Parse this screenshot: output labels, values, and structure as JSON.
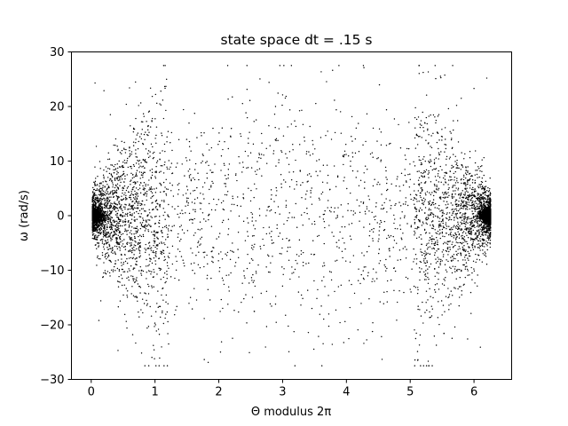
{
  "chart_data": {
    "type": "scatter",
    "title": "state space dt = .15 s",
    "xlabel": "Θ modulus 2π",
    "ylabel": "ω (rad/s)",
    "xlim": [
      -0.31,
      6.59
    ],
    "ylim": [
      -30,
      30
    ],
    "xticks": [
      0,
      1,
      2,
      3,
      4,
      5,
      6
    ],
    "yticks": [
      30,
      20,
      10,
      0,
      -10,
      -20,
      -30
    ],
    "ytick_labels": [
      "30",
      "20",
      "10",
      "0",
      "−10",
      "−20",
      "−30"
    ],
    "grid": false,
    "legend": "none",
    "marker_color": "#000000",
    "series": [
      {
        "distribution": "dense clusters at ω≈0 near Θ≈0 and Θ≈2π, sparse cloud elsewhere",
        "points": [
          [
            0.05,
            0.3
          ],
          [
            0.07,
            -0.5
          ],
          [
            0.1,
            0.8
          ],
          [
            0.12,
            -1.2
          ],
          [
            0.03,
            1.5
          ],
          [
            0.15,
            -0.2
          ],
          [
            0.2,
            2.1
          ],
          [
            0.08,
            -2.4
          ],
          [
            0.18,
            3.0
          ],
          [
            0.25,
            -3.1
          ],
          [
            0.3,
            4.2
          ],
          [
            0.06,
            5.5
          ],
          [
            0.4,
            -5.0
          ],
          [
            0.1,
            7.2
          ],
          [
            0.35,
            8.4
          ],
          [
            0.12,
            -7.9
          ],
          [
            0.5,
            9.8
          ],
          [
            0.22,
            -10.5
          ],
          [
            0.6,
            11.9
          ],
          [
            0.08,
            12.7
          ],
          [
            0.45,
            -12.2
          ],
          [
            0.7,
            14.0
          ],
          [
            0.15,
            -15.6
          ],
          [
            0.8,
            15.8
          ],
          [
            0.9,
            -14.3
          ],
          [
            0.3,
            18.5
          ],
          [
            0.12,
            -19.2
          ],
          [
            0.55,
            20.4
          ],
          [
            0.2,
            22.9
          ],
          [
            0.65,
            -21.8
          ],
          [
            0.06,
            24.3
          ],
          [
            0.42,
            -24.7
          ],
          [
            0.95,
            17.4
          ],
          [
            1.05,
            -16.8
          ],
          [
            1.15,
            13.1
          ],
          [
            1.25,
            -11.2
          ],
          [
            1.35,
            9.6
          ],
          [
            1.45,
            -8.7
          ],
          [
            1.6,
            6.9
          ],
          [
            1.7,
            -5.4
          ],
          [
            1.85,
            4.8
          ],
          [
            2.0,
            -3.9
          ],
          [
            2.15,
            7.5
          ],
          [
            2.3,
            -6.2
          ],
          [
            2.5,
            2.7
          ],
          [
            2.7,
            -2.2
          ],
          [
            2.9,
            5.1
          ],
          [
            3.1,
            -4.6
          ],
          [
            3.3,
            3.3
          ],
          [
            3.5,
            -7.1
          ],
          [
            3.7,
            6.0
          ],
          [
            3.9,
            -3.0
          ],
          [
            4.1,
            8.2
          ],
          [
            4.3,
            -9.4
          ],
          [
            4.5,
            10.6
          ],
          [
            4.7,
            -11.8
          ],
          [
            4.85,
            12.4
          ],
          [
            5.0,
            -13.5
          ],
          [
            5.1,
            14.9
          ],
          [
            5.25,
            -15.9
          ],
          [
            5.4,
            17.0
          ],
          [
            5.5,
            -18.2
          ],
          [
            5.6,
            19.6
          ],
          [
            5.7,
            -20.4
          ],
          [
            5.8,
            21.5
          ],
          [
            5.9,
            -22.6
          ],
          [
            6.0,
            23.3
          ],
          [
            6.1,
            -24.1
          ],
          [
            6.2,
            25.2
          ],
          [
            6.22,
            0.2
          ],
          [
            6.25,
            -0.4
          ],
          [
            6.2,
            0.9
          ],
          [
            6.18,
            -1.1
          ],
          [
            6.24,
            1.6
          ],
          [
            6.15,
            -1.9
          ],
          [
            6.1,
            2.5
          ],
          [
            6.05,
            -2.9
          ],
          [
            6.0,
            3.6
          ],
          [
            5.95,
            -4.1
          ],
          [
            6.12,
            4.9
          ]
        ]
      }
    ]
  }
}
